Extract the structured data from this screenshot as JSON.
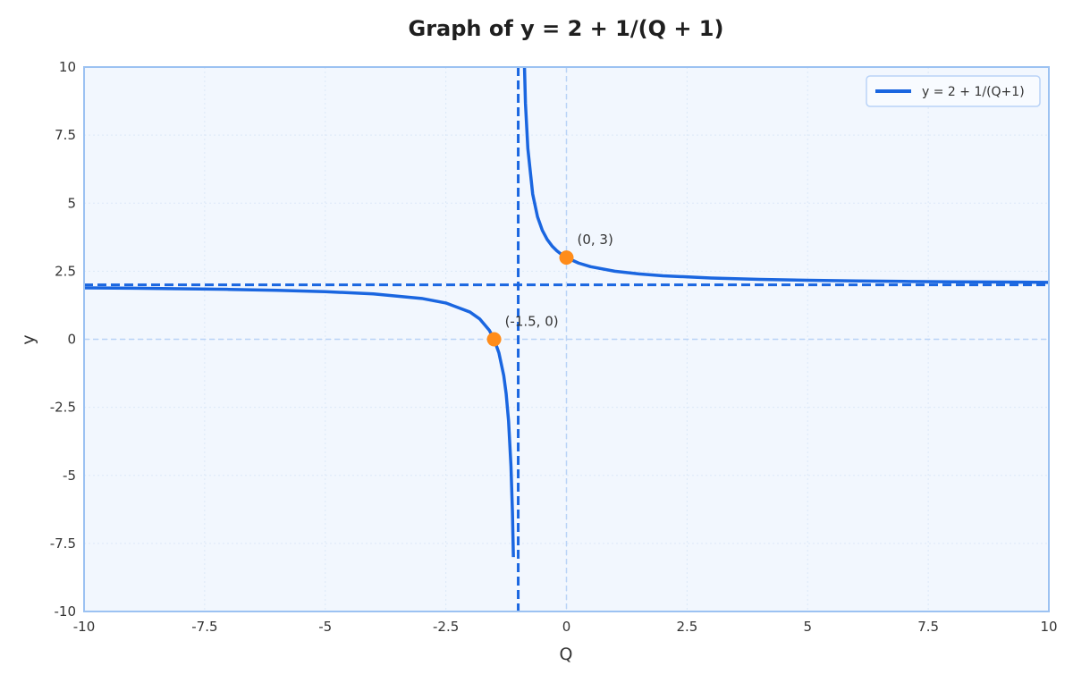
{
  "chart_data": {
    "type": "line",
    "title": "Graph of y = 2 + 1/(Q + 1)",
    "xlabel": "Q",
    "ylabel": "y",
    "xlim": [
      -10,
      10
    ],
    "ylim": [
      -10,
      10
    ],
    "x_ticks": [
      -10,
      -7.5,
      -5,
      -2.5,
      0,
      2.5,
      5,
      7.5,
      10
    ],
    "y_ticks": [
      -10,
      -7.5,
      -5,
      -2.5,
      0,
      2.5,
      5,
      7.5,
      10
    ],
    "x_tick_labels": [
      "-10",
      "-7.5",
      "-5",
      "-2.5",
      "0",
      "2.5",
      "5",
      "7.5",
      "10"
    ],
    "y_tick_labels": [
      "-10",
      "-7.5",
      "-5",
      "-2.5",
      "0",
      "2.5",
      "5",
      "7.5",
      "10"
    ],
    "grid": true,
    "legend_position": "top-right",
    "series": [
      {
        "name": "y = 2 + 1/(Q+1)",
        "color": "#1a66e0",
        "segments": [
          {
            "x": [
              -10,
              -9,
              -8,
              -7,
              -6,
              -5,
              -4,
              -3,
              -2.5,
              -2,
              -1.8,
              -1.6,
              -1.5,
              -1.4,
              -1.3,
              -1.25,
              -1.2,
              -1.15,
              -1.12,
              -1.1
            ],
            "y": [
              1.889,
              1.875,
              1.857,
              1.833,
              1.8,
              1.75,
              1.667,
              1.5,
              1.333,
              1.0,
              0.75,
              0.333,
              0.0,
              -0.5,
              -1.333,
              -2.0,
              -3.0,
              -4.667,
              -6.333,
              -8.0
            ]
          },
          {
            "x": [
              -0.9,
              -0.85,
              -0.8,
              -0.7,
              -0.6,
              -0.5,
              -0.4,
              -0.3,
              -0.2,
              -0.1,
              0,
              0.25,
              0.5,
              1,
              1.5,
              2,
              3,
              4,
              5,
              6,
              7,
              8,
              9,
              10
            ],
            "y": [
              12.0,
              8.667,
              7.0,
              5.333,
              4.5,
              4.0,
              3.667,
              3.429,
              3.25,
              3.111,
              3.0,
              2.8,
              2.667,
              2.5,
              2.4,
              2.333,
              2.25,
              2.2,
              2.167,
              2.143,
              2.125,
              2.111,
              2.1,
              2.091
            ]
          }
        ]
      }
    ],
    "asymptotes": {
      "vertical_x": -1,
      "horizontal_y": 2,
      "color": "#1a66e0"
    },
    "reference_lines": {
      "x0": 0,
      "y0": 0,
      "color": "#b9d3f7"
    },
    "points": [
      {
        "x": 0,
        "y": 3,
        "label": "(0, 3)",
        "color": "#ff8c1a"
      },
      {
        "x": -1.5,
        "y": 0,
        "label": "(-1.5, 0)",
        "color": "#ff8c1a"
      }
    ],
    "colors": {
      "plot_background": "#f2f7fe",
      "frame": "#9cc2f2",
      "grid": "#dce8f8"
    }
  }
}
